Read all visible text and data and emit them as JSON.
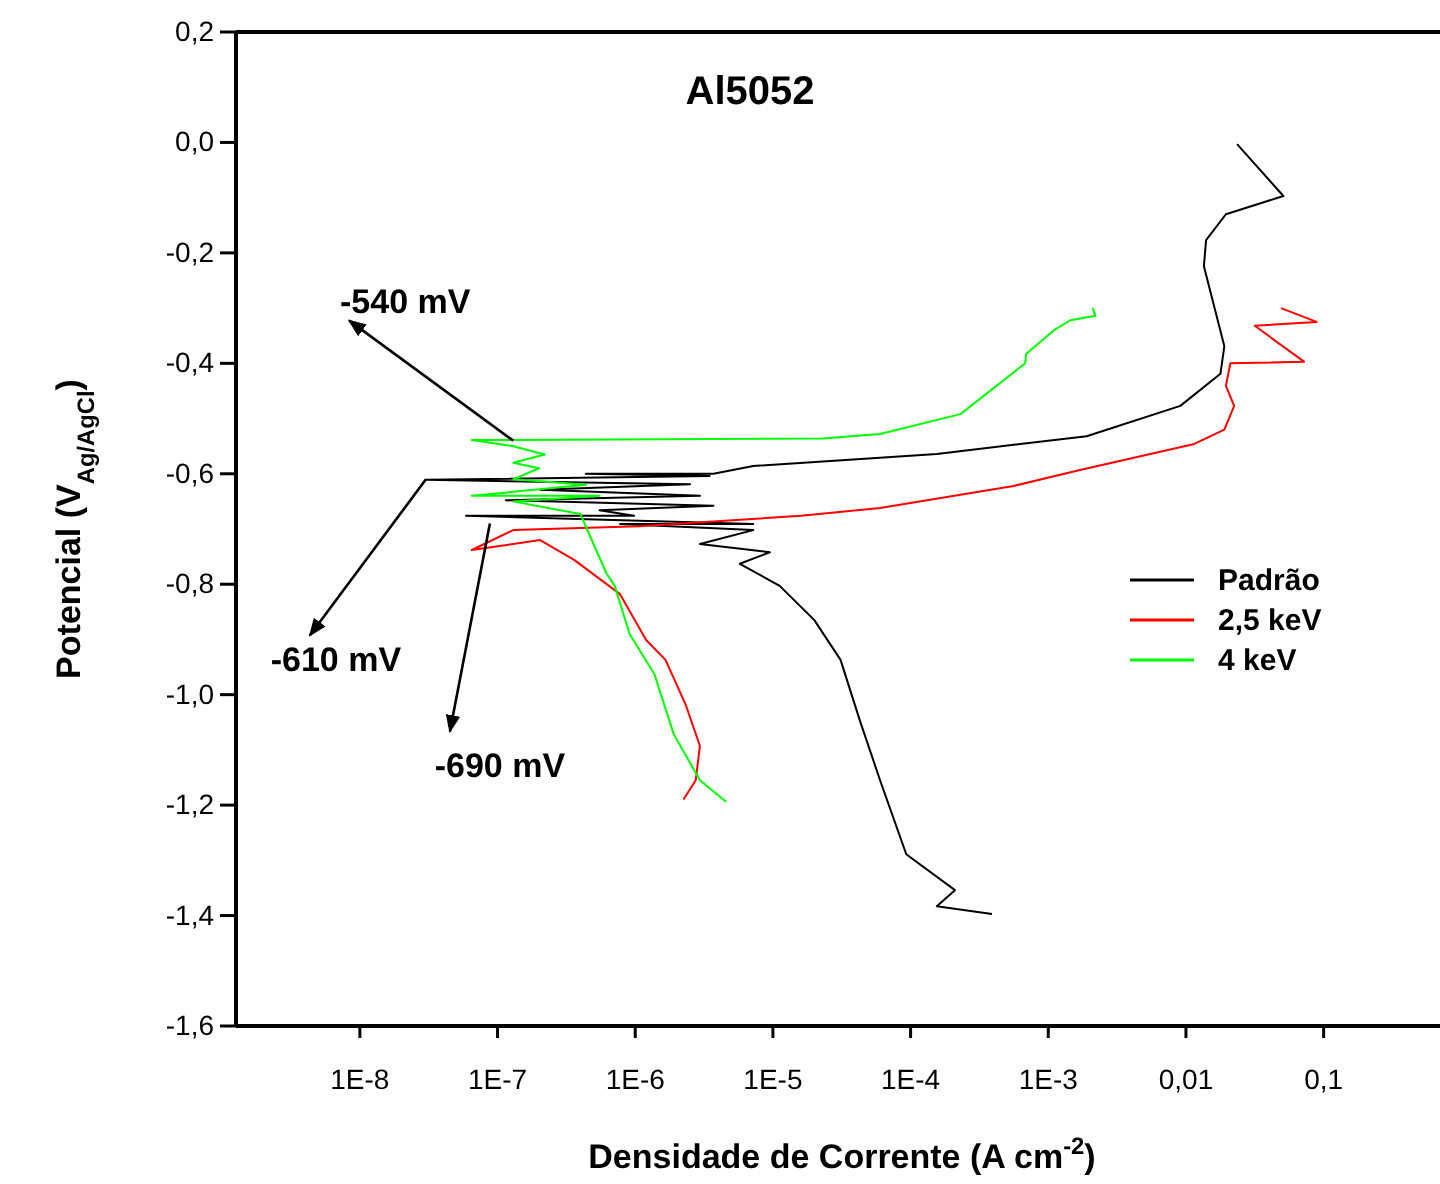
{
  "chart_data": {
    "type": "line",
    "title": "Al5052",
    "xlabel": "Densidade de Corrente (A cm$^{-2}$)",
    "ylabel": "Potencial (V$_{Ag/AgCl}$)",
    "log": "x",
    "xlim": [
      1.26e-09,
      0.7
    ],
    "ylim": [
      -1.6,
      0.2
    ],
    "xticks": [
      {
        "value": 1e-08,
        "label": "1E-8"
      },
      {
        "value": 1e-07,
        "label": "1E-7"
      },
      {
        "value": 1e-06,
        "label": "1E-6"
      },
      {
        "value": 1e-05,
        "label": "1E-5"
      },
      {
        "value": 0.0001,
        "label": "1E-4"
      },
      {
        "value": 0.001,
        "label": "1E-3"
      },
      {
        "value": 0.01,
        "label": "0,01"
      },
      {
        "value": 0.1,
        "label": "0,1"
      }
    ],
    "yticks": [
      {
        "value": 0.2,
        "label": "0,2"
      },
      {
        "value": 0,
        "label": "0,0"
      },
      {
        "value": -0.2,
        "label": "-0,2"
      },
      {
        "value": -0.4,
        "label": "-0,4"
      },
      {
        "value": -0.6,
        "label": "-0,6"
      },
      {
        "value": -0.8,
        "label": "-0,8"
      },
      {
        "value": -1,
        "label": "-1,0"
      },
      {
        "value": -1.2,
        "label": "-1,2"
      },
      {
        "value": -1.4,
        "label": "-1,4"
      },
      {
        "value": -1.6,
        "label": "-1,6"
      }
    ],
    "grid": false,
    "legend": "right",
    "marker": "none",
    "line_style": "solid",
    "series": [
      {
        "name": "Padrão",
        "color": "#000000",
        "x": [
          0.00039,
          0.000155,
          0.00021,
          9.3e-05,
          6e-05,
          4.27e-05,
          3.1e-05,
          2e-05,
          1.12e-05,
          5.75e-06,
          9.5e-06,
          2.95e-06,
          7.2e-06,
          7.76e-07,
          7.2e-06,
          5.9e-08,
          9.8e-07,
          5.5e-07,
          3.7e-06,
          1.15e-07,
          2.95e-06,
          2.04e-07,
          2.5e-06,
          3.02e-08,
          3.47e-06,
          4.37e-07,
          3.7e-06,
          7.2e-06,
          0.000155,
          0.0019,
          0.0091,
          0.0178,
          0.019,
          0.0135,
          0.014,
          0.0195,
          0.051,
          0.0235
        ],
        "values": [
          -1.397,
          -1.383,
          -1.354,
          -1.289,
          -1.155,
          -1.046,
          -0.937,
          -0.865,
          -0.803,
          -0.763,
          -0.742,
          -0.727,
          -0.702,
          -0.691,
          -0.691,
          -0.676,
          -0.676,
          -0.666,
          -0.658,
          -0.648,
          -0.64,
          -0.629,
          -0.619,
          -0.611,
          -0.604,
          -0.6,
          -0.6,
          -0.586,
          -0.564,
          -0.532,
          -0.477,
          -0.419,
          -0.369,
          -0.224,
          -0.177,
          -0.13,
          -0.097,
          -0.003
        ]
      },
      {
        "name": "2,5 keV",
        "color": "#ff0000",
        "x": [
          2.24e-06,
          2.75e-06,
          2.95e-06,
          2.34e-06,
          1.66e-06,
          1.2e-06,
          7.76e-07,
          3.6e-07,
          2.04e-07,
          6.5e-08,
          1.3e-07,
          1.07e-06,
          1.6e-05,
          6e-05,
          0.00056,
          0.0017,
          0.0115,
          0.019,
          0.0224,
          0.0195,
          0.021,
          0.072,
          0.0316,
          0.089,
          0.049
        ],
        "values": [
          -1.19,
          -1.155,
          -1.093,
          -1.02,
          -0.937,
          -0.901,
          -0.818,
          -0.756,
          -0.72,
          -0.738,
          -0.702,
          -0.695,
          -0.676,
          -0.662,
          -0.622,
          -0.593,
          -0.546,
          -0.52,
          -0.477,
          -0.441,
          -0.4,
          -0.397,
          -0.332,
          -0.325,
          -0.3
        ]
      },
      {
        "name": "4 keV",
        "color": "#00ff00",
        "x": [
          4.57e-06,
          2.95e-06,
          1.9e-06,
          1.38e-06,
          9.1e-07,
          7.1e-07,
          6.2e-07,
          4.37e-07,
          4e-07,
          1.3e-07,
          5.5e-07,
          6.5e-08,
          4.4e-07,
          1.3e-07,
          2e-07,
          1.3e-07,
          2.2e-07,
          1.3e-07,
          6.5e-08,
          1.3e-07,
          2.3e-05,
          6e-05,
          0.00023,
          0.00068,
          0.00069,
          0.0011,
          0.00145,
          0.0022,
          0.0021
        ],
        "values": [
          -1.194,
          -1.155,
          -1.071,
          -0.963,
          -0.89,
          -0.803,
          -0.781,
          -0.695,
          -0.673,
          -0.65,
          -0.64,
          -0.64,
          -0.62,
          -0.61,
          -0.59,
          -0.58,
          -0.565,
          -0.55,
          -0.539,
          -0.539,
          -0.536,
          -0.528,
          -0.492,
          -0.4,
          -0.383,
          -0.34,
          -0.322,
          -0.314,
          -0.3
        ]
      }
    ],
    "annotations": [
      {
        "text": "-540 mV",
        "x": 1.3e-07,
        "y": -0.54
      },
      {
        "text": "-610 mV",
        "x": 3.02e-08,
        "y": -0.61
      },
      {
        "text": "-690 mV",
        "x": 8.8e-08,
        "y": -0.69
      }
    ]
  }
}
